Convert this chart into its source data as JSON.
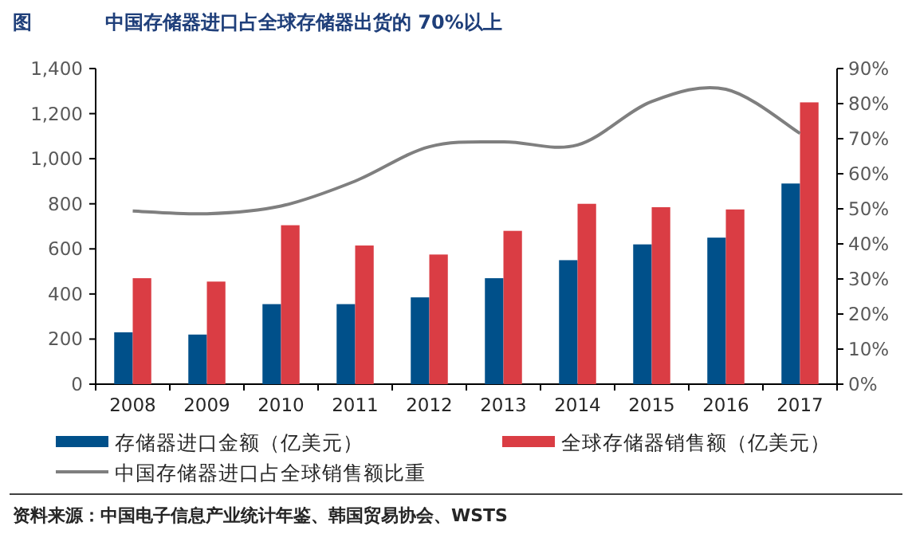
{
  "chart_data": {
    "type": "bar",
    "title": "中国存储器进口占全球存储器出货的 70%以上",
    "categories": [
      "2008",
      "2009",
      "2010",
      "2011",
      "2012",
      "2013",
      "2014",
      "2015",
      "2016",
      "2017"
    ],
    "series": [
      {
        "name": "存储器进口金额（亿美元）",
        "color": "#00508a",
        "values": [
          230,
          220,
          355,
          355,
          385,
          470,
          550,
          620,
          650,
          890
        ]
      },
      {
        "name": "全球存储器销售额（亿美元）",
        "color": "#da3d44",
        "values": [
          470,
          455,
          705,
          615,
          575,
          680,
          800,
          785,
          775,
          1250
        ]
      },
      {
        "name": "中国存储器进口占全球销售额比重",
        "type": "line",
        "axis": "y2",
        "color": "#7f7f7f",
        "values": [
          49.4,
          48.6,
          50.8,
          57.9,
          67.7,
          69.1,
          68.2,
          80.6,
          84.1,
          71.5
        ]
      }
    ],
    "ylim": [
      0,
      1400
    ],
    "yticks": [
      0,
      200,
      400,
      600,
      800,
      {
        "value": 1000,
        "label": "1,000"
      },
      {
        "value": 1200,
        "label": "1,200"
      },
      {
        "value": 1400,
        "label": "1,400"
      }
    ],
    "y2lim": [
      0,
      90
    ],
    "y2ticks": [
      {
        "value": 0,
        "label": "0%"
      },
      {
        "value": 10,
        "label": "10%"
      },
      {
        "value": 20,
        "label": "20%"
      },
      {
        "value": 30,
        "label": "30%"
      },
      {
        "value": 40,
        "label": "40%"
      },
      {
        "value": 50,
        "label": "50%"
      },
      {
        "value": 60,
        "label": "60%"
      },
      {
        "value": 70,
        "label": "70%"
      },
      {
        "value": 80,
        "label": "80%"
      },
      {
        "value": 90,
        "label": "90%"
      }
    ],
    "legend": "bottom",
    "annotations": [
      "图",
      "资料来源：中国电子信息产业统计年鉴、韩国贸易协会、WSTS"
    ]
  }
}
